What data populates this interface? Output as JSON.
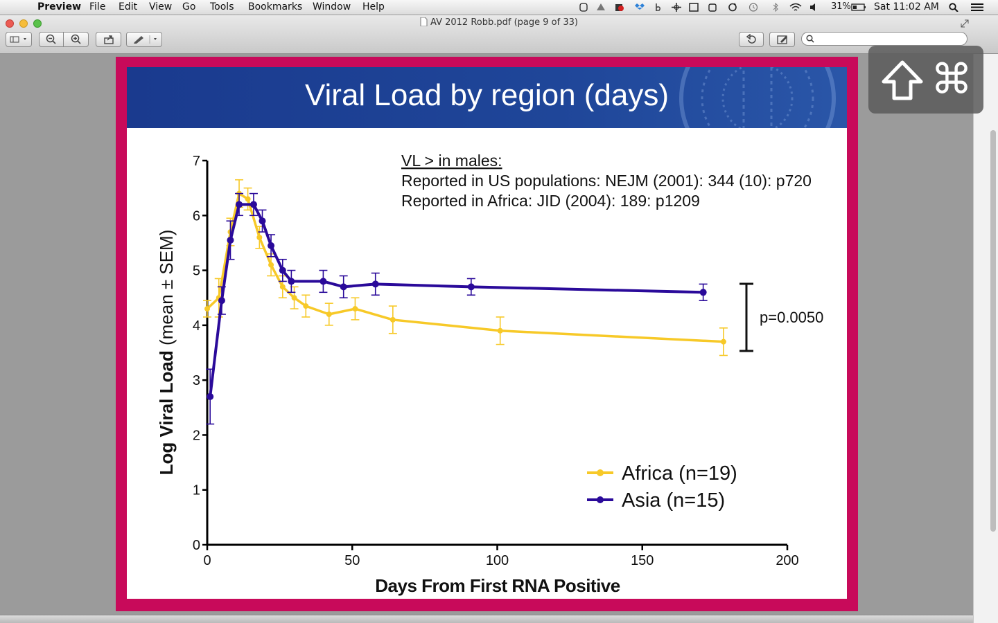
{
  "menubar": {
    "apple_glyph": "",
    "app_name": "Preview",
    "items": [
      "File",
      "Edit",
      "View",
      "Go",
      "Tools",
      "Bookmarks",
      "Window",
      "Help"
    ],
    "battery": "31%",
    "clock": "Sat 11:02 AM"
  },
  "window": {
    "title": "AV 2012 Robb.pdf (page 9 of 33)",
    "search_placeholder": ""
  },
  "hud": {
    "shift_icon": "shift-icon",
    "command_glyph": "⌘"
  },
  "slide": {
    "title": "Viral Load by region (days)",
    "note_heading": "VL > in males:",
    "note_line1": "Reported in US populations:  NEJM (2001): 344 (10): p720",
    "note_line2": "Reported in Africa: JID (2004): 189: p1209",
    "p_value": "p=0.0050"
  },
  "chart_data": {
    "type": "line",
    "xlabel": "Days From First RNA Positive",
    "ylabel_main": "Log Viral Load",
    "ylabel_sub": " (mean ± SEM)",
    "xlim": [
      0,
      200
    ],
    "ylim": [
      0,
      7
    ],
    "xticks": [
      0,
      50,
      100,
      150,
      200
    ],
    "yticks": [
      0,
      1,
      2,
      3,
      4,
      5,
      6,
      7
    ],
    "grid": false,
    "legend_position": "bottom-right",
    "series": [
      {
        "name": "Africa (n=19)",
        "color": "#f7c928",
        "points": [
          {
            "x": 0,
            "y": 4.3,
            "err": 0.15
          },
          {
            "x": 4,
            "y": 4.5,
            "err": 0.35
          },
          {
            "x": 8,
            "y": 5.7,
            "err": 0.25
          },
          {
            "x": 11,
            "y": 6.4,
            "err": 0.25
          },
          {
            "x": 14,
            "y": 6.3,
            "err": 0.2
          },
          {
            "x": 18,
            "y": 5.6,
            "err": 0.2
          },
          {
            "x": 22,
            "y": 5.1,
            "err": 0.2
          },
          {
            "x": 26,
            "y": 4.7,
            "err": 0.2
          },
          {
            "x": 30,
            "y": 4.5,
            "err": 0.2
          },
          {
            "x": 34,
            "y": 4.35,
            "err": 0.2
          },
          {
            "x": 42,
            "y": 4.2,
            "err": 0.2
          },
          {
            "x": 51,
            "y": 4.3,
            "err": 0.2
          },
          {
            "x": 64,
            "y": 4.1,
            "err": 0.25
          },
          {
            "x": 101,
            "y": 3.9,
            "err": 0.25
          },
          {
            "x": 178,
            "y": 3.7,
            "err": 0.25
          }
        ]
      },
      {
        "name": "Asia (n=15)",
        "color": "#2a0a9a",
        "points": [
          {
            "x": 1,
            "y": 2.7,
            "err": 0.5
          },
          {
            "x": 5,
            "y": 4.45,
            "err": 0.25
          },
          {
            "x": 8,
            "y": 5.55,
            "err": 0.35
          },
          {
            "x": 11,
            "y": 6.2,
            "err": 0.2
          },
          {
            "x": 16,
            "y": 6.2,
            "err": 0.2
          },
          {
            "x": 19,
            "y": 5.9,
            "err": 0.2
          },
          {
            "x": 22,
            "y": 5.45,
            "err": 0.2
          },
          {
            "x": 26,
            "y": 5.0,
            "err": 0.2
          },
          {
            "x": 29,
            "y": 4.8,
            "err": 0.2
          },
          {
            "x": 40,
            "y": 4.8,
            "err": 0.2
          },
          {
            "x": 47,
            "y": 4.7,
            "err": 0.2
          },
          {
            "x": 58,
            "y": 4.75,
            "err": 0.2
          },
          {
            "x": 91,
            "y": 4.7,
            "err": 0.15
          },
          {
            "x": 171,
            "y": 4.6,
            "err": 0.15
          }
        ]
      }
    ]
  }
}
